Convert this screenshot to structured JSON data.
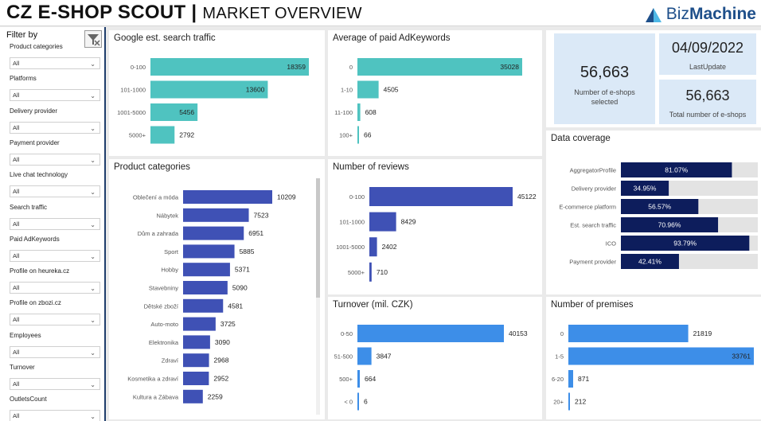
{
  "header": {
    "title": "CZ E-SHOP SCOUT |",
    "subtitle": "MARKET OVERVIEW",
    "logo_prefix": "Biz",
    "logo_bold": "Machine"
  },
  "colors": {
    "teal": "#4fc3c0",
    "indigo": "#3f51b5",
    "sky": "#3d8ee8",
    "navy": "#0d1d5c",
    "kpi_bg": "#dbe9f7"
  },
  "sidebar": {
    "title": "Filter by",
    "filters": [
      {
        "label": "Product categories",
        "value": "All"
      },
      {
        "label": "Platforms",
        "value": "All"
      },
      {
        "label": "Delivery provider",
        "value": "All"
      },
      {
        "label": "Payment provider",
        "value": "All"
      },
      {
        "label": "Live chat technology",
        "value": "All"
      },
      {
        "label": "Search traffic",
        "value": "All"
      },
      {
        "label": "Paid AdKeywords",
        "value": "All"
      },
      {
        "label": "Profile on heureka.cz",
        "value": "All"
      },
      {
        "label": "Profile on zbozi.cz",
        "value": "All"
      },
      {
        "label": "Employees",
        "value": "All"
      },
      {
        "label": "Turnover",
        "value": "All"
      },
      {
        "label": "OutletsCount",
        "value": "All"
      }
    ]
  },
  "kpis": {
    "selected_value": "56,663",
    "selected_caption": "Number of e-shops selected",
    "update_value": "04/09/2022",
    "update_caption": "LastUpdate",
    "total_value": "56,663",
    "total_caption": "Total number of e-shops"
  },
  "panels": {
    "search": "Google est. search traffic",
    "adkeywords": "Average of paid AdKeywords",
    "categories": "Product categories",
    "reviews": "Number of reviews",
    "coverage": "Data coverage",
    "turnover": "Turnover (mil. CZK)",
    "premises": "Number of premises"
  },
  "chart_data": [
    {
      "id": "search",
      "type": "bar",
      "orientation": "horizontal",
      "title": "Google est. search traffic",
      "categories": [
        "0-100",
        "101-1000",
        "1001-5000",
        "5000+"
      ],
      "values": [
        18359,
        13600,
        5456,
        2792
      ],
      "labels": [
        "18359",
        "13600",
        "5456",
        "2792"
      ],
      "color": "#4fc3c0",
      "max": 18359
    },
    {
      "id": "adkeywords",
      "type": "bar",
      "orientation": "horizontal",
      "title": "Average of paid AdKeywords",
      "categories": [
        "0",
        "1-10",
        "11-100",
        "100+"
      ],
      "values": [
        35028,
        4505,
        608,
        66
      ],
      "labels": [
        "35028",
        "4505",
        "608",
        "66"
      ],
      "color": "#4fc3c0",
      "max": 35028
    },
    {
      "id": "categories",
      "type": "bar",
      "orientation": "horizontal",
      "title": "Product categories",
      "categories": [
        "Oblečení a móda",
        "Nábytek",
        "Dům a zahrada",
        "Sport",
        "Hobby",
        "Stavebniny",
        "Dětské zboží",
        "Auto-moto",
        "Elektronika",
        "Zdraví",
        "Kosmetika a zdraví",
        "Kultura a Zábava"
      ],
      "values": [
        10209,
        7523,
        6951,
        5885,
        5371,
        5090,
        4581,
        3725,
        3090,
        2968,
        2952,
        2259
      ],
      "labels": [
        "10209",
        "7523",
        "6951",
        "5885",
        "5371",
        "5090",
        "4581",
        "3725",
        "3090",
        "2968",
        "2952",
        "2259"
      ],
      "color": "#3f51b5",
      "max": 10209
    },
    {
      "id": "reviews",
      "type": "bar",
      "orientation": "horizontal",
      "title": "Number of reviews",
      "categories": [
        "0-100",
        "101-1000",
        "1001-5000",
        "5000+"
      ],
      "values": [
        45122,
        8429,
        2402,
        710
      ],
      "labels": [
        "45122",
        "8429",
        "2402",
        "710"
      ],
      "color": "#3f51b5",
      "max": 45122
    },
    {
      "id": "coverage",
      "type": "bar",
      "orientation": "horizontal",
      "title": "Data coverage",
      "categories": [
        "AggregatorProfile",
        "Delivery provider",
        "E-commerce platform",
        "Est. search traffic",
        "ICO",
        "Payment provider"
      ],
      "values": [
        81.07,
        34.95,
        56.57,
        70.96,
        93.79,
        42.41
      ],
      "labels": [
        "81.07%",
        "34.95%",
        "56.57%",
        "70.96%",
        "93.79%",
        "42.41%"
      ],
      "color": "#0d1d5c",
      "max": 100
    },
    {
      "id": "turnover",
      "type": "bar",
      "orientation": "horizontal",
      "title": "Turnover (mil. CZK)",
      "categories": [
        "0-50",
        "51-500",
        "500+",
        "< 0"
      ],
      "values": [
        40153,
        3847,
        664,
        6
      ],
      "labels": [
        "40153",
        "3847",
        "664",
        "6"
      ],
      "color": "#3d8ee8",
      "max": 40153
    },
    {
      "id": "premises",
      "type": "bar",
      "orientation": "horizontal",
      "title": "Number of premises",
      "categories": [
        "0",
        "1-5",
        "6-20",
        "20+"
      ],
      "values": [
        21819,
        33761,
        871,
        212
      ],
      "labels": [
        "21819",
        "33761",
        "871",
        "212"
      ],
      "color": "#3d8ee8",
      "max": 33761
    }
  ]
}
